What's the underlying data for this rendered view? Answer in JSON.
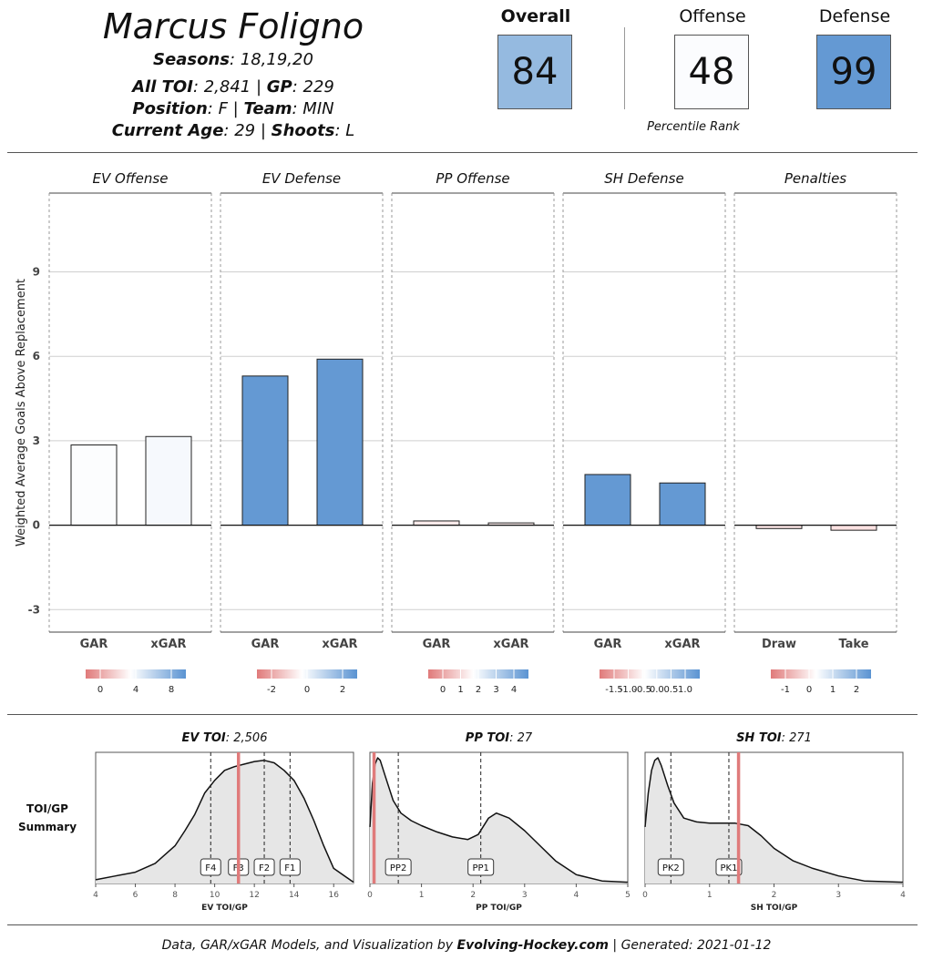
{
  "header": {
    "player_name": "Marcus Foligno",
    "seasons_label": "Seasons",
    "seasons_value": ": 18,19,20",
    "toi_label": "All TOI",
    "toi_value": ": 2,841 | ",
    "gp_label": "GP",
    "gp_value": ": 229",
    "position_label": "Position",
    "position_value": ": F | ",
    "team_label": "Team",
    "team_value": ": MIN",
    "age_label": "Current  Age",
    "age_value": ": 29 | ",
    "shoots_label": "Shoots",
    "shoots_value": ": L"
  },
  "ranks": {
    "overall_label": "Overall",
    "overall_value": "84",
    "overall_color": "#95BAE0",
    "offense_label": "Offense",
    "offense_value": "48",
    "offense_color": "#FBFCFE",
    "defense_label": "Defense",
    "defense_value": "99",
    "defense_color": "#6499D3",
    "percentile_label": "Percentile Rank"
  },
  "chart_data": [
    {
      "type": "bar",
      "ylabel": "Weighted Average Goals Above Replacement",
      "ylim": [
        -3.8,
        11.8
      ],
      "yticks": [
        -3,
        0,
        3,
        6,
        9
      ],
      "panels": [
        {
          "title": "EV Offense",
          "categories": [
            "GAR",
            "xGAR"
          ],
          "values": [
            2.85,
            3.15
          ],
          "colors": [
            "#FCFDFE",
            "#F6F9FD"
          ],
          "legend": {
            "ticks": [
              "0",
              "4",
              "8"
            ]
          }
        },
        {
          "title": "EV Defense",
          "categories": [
            "GAR",
            "xGAR"
          ],
          "values": [
            5.3,
            5.9
          ],
          "colors": [
            "#6499D3",
            "#6499D3"
          ],
          "legend": {
            "ticks": [
              "-2",
              "0",
              "2"
            ]
          }
        },
        {
          "title": "PP Offense",
          "categories": [
            "GAR",
            "xGAR"
          ],
          "values": [
            0.15,
            0.08
          ],
          "colors": [
            "#FBEAEA",
            "#FBEDED"
          ],
          "legend": {
            "ticks": [
              "0",
              "1",
              "2",
              "3",
              "4"
            ]
          }
        },
        {
          "title": "SH Defense",
          "categories": [
            "GAR",
            "xGAR"
          ],
          "values": [
            1.8,
            1.5
          ],
          "colors": [
            "#6499D3",
            "#6499D3"
          ],
          "legend": {
            "ticks": [
              "-1.5",
              "-1.0",
              "-0.5",
              "0.0",
              "0.5",
              "1.0"
            ]
          }
        },
        {
          "title": "Penalties",
          "categories": [
            "Draw",
            "Take"
          ],
          "values": [
            -0.12,
            -0.18
          ],
          "colors": [
            "#FBE5E5",
            "#FBE2E2"
          ],
          "legend": {
            "ticks": [
              "-1",
              "0",
              "1",
              "2"
            ]
          }
        }
      ]
    },
    {
      "type": "area",
      "row_label_1": "TOI/GP",
      "row_label_2": "Summary",
      "panels": [
        {
          "title_label": "EV TOI",
          "title_value": ": 2,506",
          "xlabel": "EV TOI/GP",
          "xlim": [
            4,
            17
          ],
          "xticks": [
            4,
            6,
            8,
            10,
            12,
            14,
            16
          ],
          "player_value": 11.2,
          "markers": [
            {
              "label": "F4",
              "x": 9.8
            },
            {
              "label": "F3",
              "x": 11.2
            },
            {
              "label": "F2",
              "x": 12.5
            },
            {
              "label": "F1",
              "x": 13.8
            }
          ],
          "density_x": [
            4,
            5,
            6,
            7,
            8,
            8.5,
            9,
            9.5,
            10,
            10.5,
            11,
            11.5,
            12,
            12.5,
            13,
            13.5,
            14,
            14.5,
            15,
            15.5,
            16,
            17
          ],
          "density_y": [
            0.03,
            0.06,
            0.09,
            0.16,
            0.3,
            0.42,
            0.55,
            0.72,
            0.82,
            0.9,
            0.93,
            0.95,
            0.97,
            0.98,
            0.96,
            0.9,
            0.82,
            0.68,
            0.5,
            0.3,
            0.12,
            0.01
          ]
        },
        {
          "title_label": "PP TOI",
          "title_value": ": 27",
          "xlabel": "PP TOI/GP",
          "xlim": [
            0,
            5
          ],
          "xticks": [
            0,
            1,
            2,
            3,
            4,
            5
          ],
          "player_value": 0.08,
          "markers": [
            {
              "label": "PP2",
              "x": 0.55
            },
            {
              "label": "PP1",
              "x": 2.15
            }
          ],
          "density_x": [
            0,
            0.05,
            0.1,
            0.15,
            0.2,
            0.3,
            0.45,
            0.6,
            0.8,
            1.0,
            1.3,
            1.6,
            1.9,
            2.1,
            2.3,
            2.45,
            2.7,
            3.0,
            3.3,
            3.6,
            4.0,
            4.5,
            5.0
          ],
          "density_y": [
            0.45,
            0.8,
            0.95,
            1.0,
            0.98,
            0.85,
            0.66,
            0.56,
            0.5,
            0.46,
            0.41,
            0.37,
            0.35,
            0.39,
            0.52,
            0.56,
            0.52,
            0.42,
            0.3,
            0.18,
            0.07,
            0.02,
            0.01
          ]
        },
        {
          "title_label": "SH TOI",
          "title_value": ": 271",
          "xlabel": "SH TOI/GP",
          "xlim": [
            0,
            4
          ],
          "xticks": [
            0,
            1,
            2,
            3,
            4
          ],
          "player_value": 1.45,
          "markers": [
            {
              "label": "PK2",
              "x": 0.4
            },
            {
              "label": "PK1",
              "x": 1.3
            }
          ],
          "density_x": [
            0,
            0.05,
            0.1,
            0.15,
            0.2,
            0.25,
            0.35,
            0.45,
            0.6,
            0.8,
            1.0,
            1.2,
            1.4,
            1.6,
            1.8,
            2.0,
            2.3,
            2.6,
            3.0,
            3.4,
            4.0
          ],
          "density_y": [
            0.45,
            0.72,
            0.9,
            0.98,
            1.0,
            0.94,
            0.78,
            0.64,
            0.52,
            0.49,
            0.48,
            0.48,
            0.48,
            0.46,
            0.38,
            0.28,
            0.18,
            0.12,
            0.06,
            0.02,
            0.01
          ]
        }
      ]
    }
  ],
  "footer": {
    "text_prefix": "Data,  GAR/xGAR Models, and Visualization by ",
    "brand": "Evolving-Hockey.com",
    "text_suffix": "  | Generated:  2021-01-12"
  }
}
